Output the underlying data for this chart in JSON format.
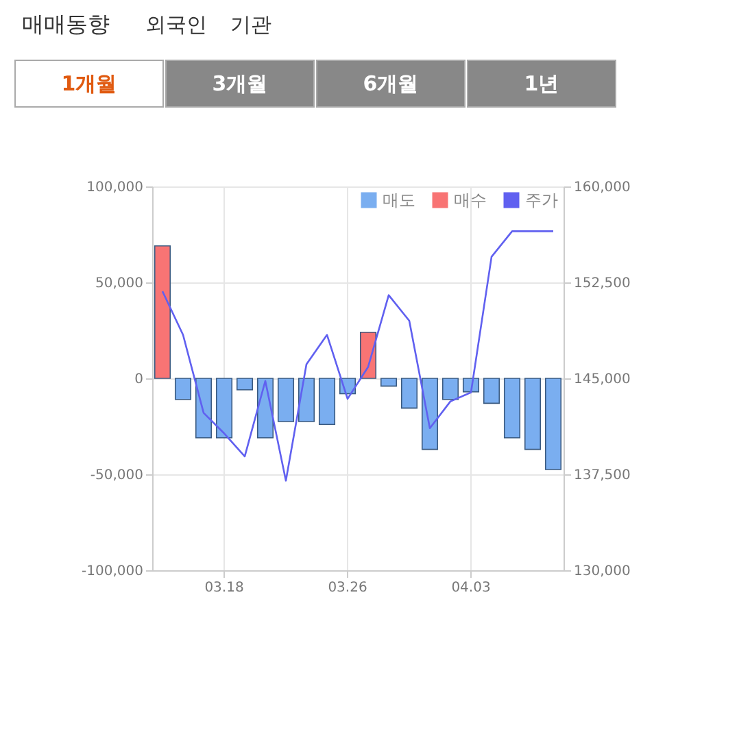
{
  "chart_data": {
    "type": "bar",
    "title": "매매동향",
    "annotations": [
      "외국인",
      "기관",
      "1개월",
      "3개월",
      "6개월",
      "1년"
    ],
    "categories": [
      null,
      null,
      null,
      "03.18",
      null,
      null,
      null,
      null,
      null,
      "03.26",
      null,
      null,
      null,
      null,
      null,
      "04.03",
      null,
      null,
      null,
      null
    ],
    "stacked": true,
    "series": [
      {
        "name": "매도",
        "color": "#7aaef0",
        "values": [
          null,
          -11000,
          -31000,
          -31000,
          -6000,
          -31000,
          -22500,
          -22500,
          -24000,
          -8000,
          null,
          -4000,
          -15500,
          -37000,
          -11000,
          -7000,
          -13000,
          -31000,
          -37000,
          -47500
        ]
      },
      {
        "name": "매수",
        "color": "#f87474",
        "values": [
          69000,
          null,
          null,
          null,
          null,
          null,
          null,
          null,
          null,
          null,
          24000,
          null,
          null,
          null,
          null,
          null,
          null,
          null,
          null,
          null
        ]
      },
      {
        "name": "주가",
        "type": "line",
        "axis": "y2",
        "color": "#6060f0",
        "values": [
          151800,
          148400,
          142300,
          140700,
          138900,
          144800,
          137000,
          146100,
          148400,
          143400,
          145900,
          151500,
          149500,
          141100,
          143200,
          143900,
          154500,
          156500,
          156500,
          156500
        ]
      }
    ],
    "ylim": [
      -100000,
      100000
    ],
    "yticks": [
      {
        "value": -100000,
        "label": "-100,000"
      },
      {
        "value": -50000,
        "label": "-50,000"
      },
      0,
      {
        "value": 50000,
        "label": "50,000"
      },
      {
        "value": 100000,
        "label": "100,000"
      }
    ],
    "y2lim": [
      130000,
      160000
    ],
    "y2ticks": [
      {
        "value": 130000,
        "label": "130,000"
      },
      {
        "value": 137500,
        "label": "137,500"
      },
      {
        "value": 145000,
        "label": "145,000"
      },
      {
        "value": 152500,
        "label": "152,500"
      },
      {
        "value": 160000,
        "label": "160,000"
      }
    ],
    "grid": true,
    "legend": "top right"
  }
}
